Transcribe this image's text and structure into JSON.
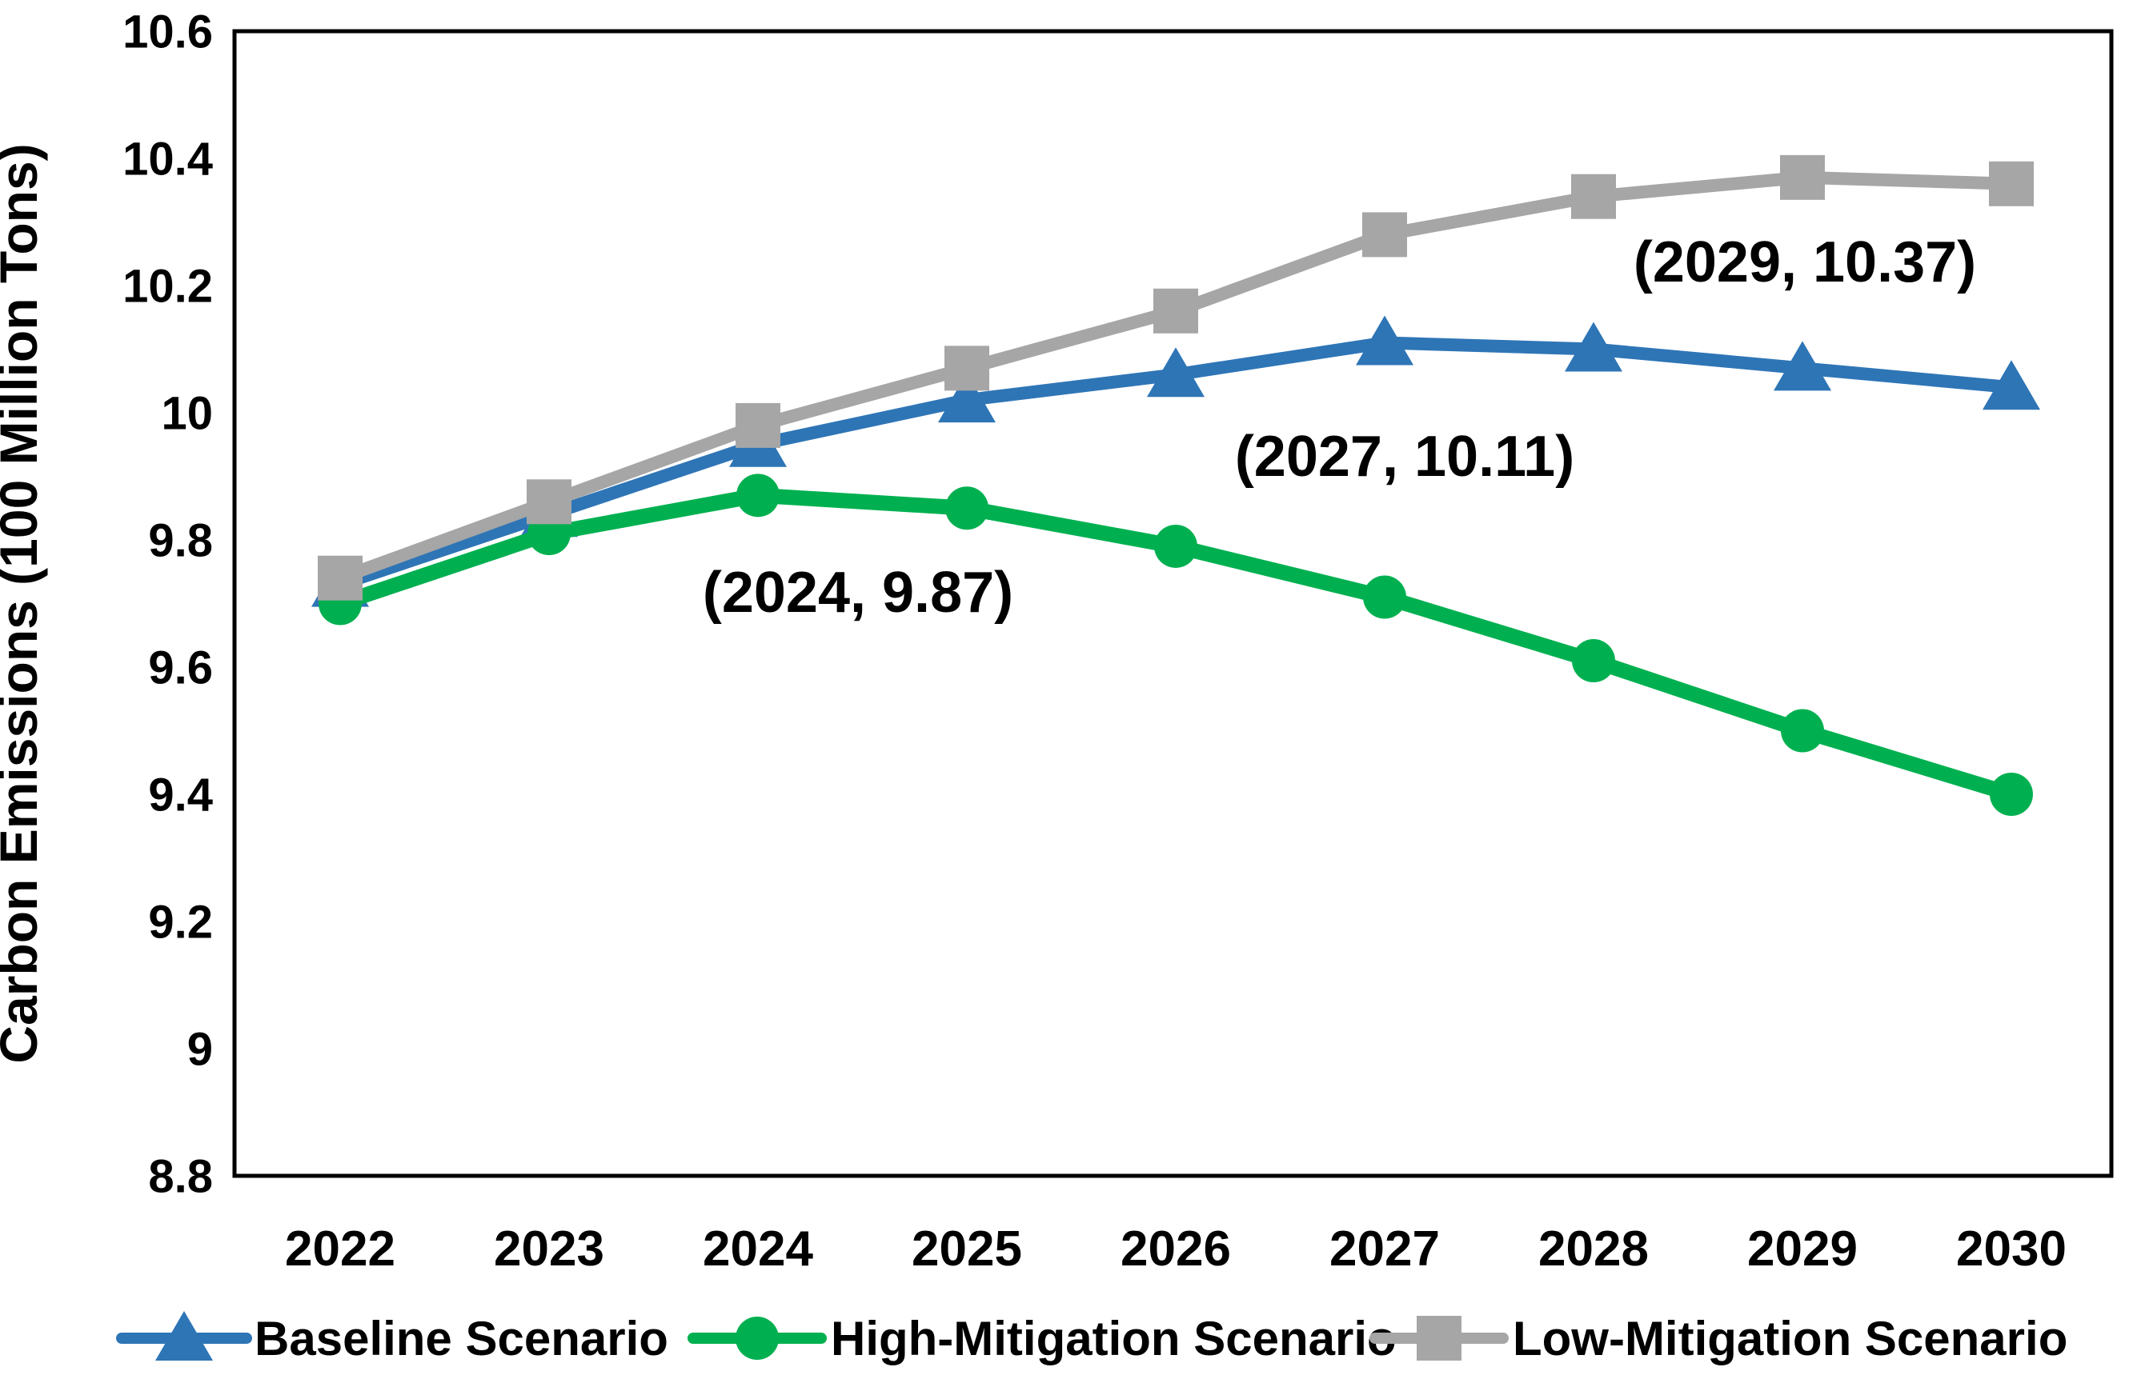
{
  "chart_data": {
    "type": "line",
    "title": "",
    "xlabel": "",
    "ylabel": "Carbon Emissions (100 Million Tons)",
    "x": [
      2022,
      2023,
      2024,
      2025,
      2026,
      2027,
      2028,
      2029,
      2030
    ],
    "x_tick_labels": [
      "2022",
      "2023",
      "2024",
      "2025",
      "2026",
      "2027",
      "2028",
      "2029",
      "2030"
    ],
    "ylim": [
      8.8,
      10.6
    ],
    "y_tick_step": 0.2,
    "y_tick_labels": [
      "8.8",
      "9",
      "9.2",
      "9.4",
      "9.6",
      "9.8",
      "10",
      "10.2",
      "10.4",
      "10.6"
    ],
    "grid": false,
    "legend_position": "bottom",
    "series": [
      {
        "name": "Baseline Scenario",
        "color": "#2E75B6",
        "marker": "triangle",
        "values": [
          9.73,
          9.84,
          9.95,
          10.02,
          10.06,
          10.11,
          10.1,
          10.07,
          10.04
        ]
      },
      {
        "name": "High-Mitigation Scenario",
        "color": "#00B050",
        "marker": "circle",
        "values": [
          9.7,
          9.81,
          9.87,
          9.85,
          9.79,
          9.71,
          9.61,
          9.5,
          9.4
        ]
      },
      {
        "name": "Low-Mitigation Scenario",
        "color": "#A6A6A6",
        "marker": "square",
        "values": [
          9.74,
          9.86,
          9.98,
          10.07,
          10.16,
          10.28,
          10.34,
          10.37,
          10.36
        ]
      }
    ],
    "annotations": [
      {
        "text": "(2024, 9.87)"
      },
      {
        "text": "(2027, 10.11)"
      },
      {
        "text": "(2029, 10.37)"
      }
    ],
    "axis_color": "#000000",
    "background_color": "#ffffff"
  }
}
